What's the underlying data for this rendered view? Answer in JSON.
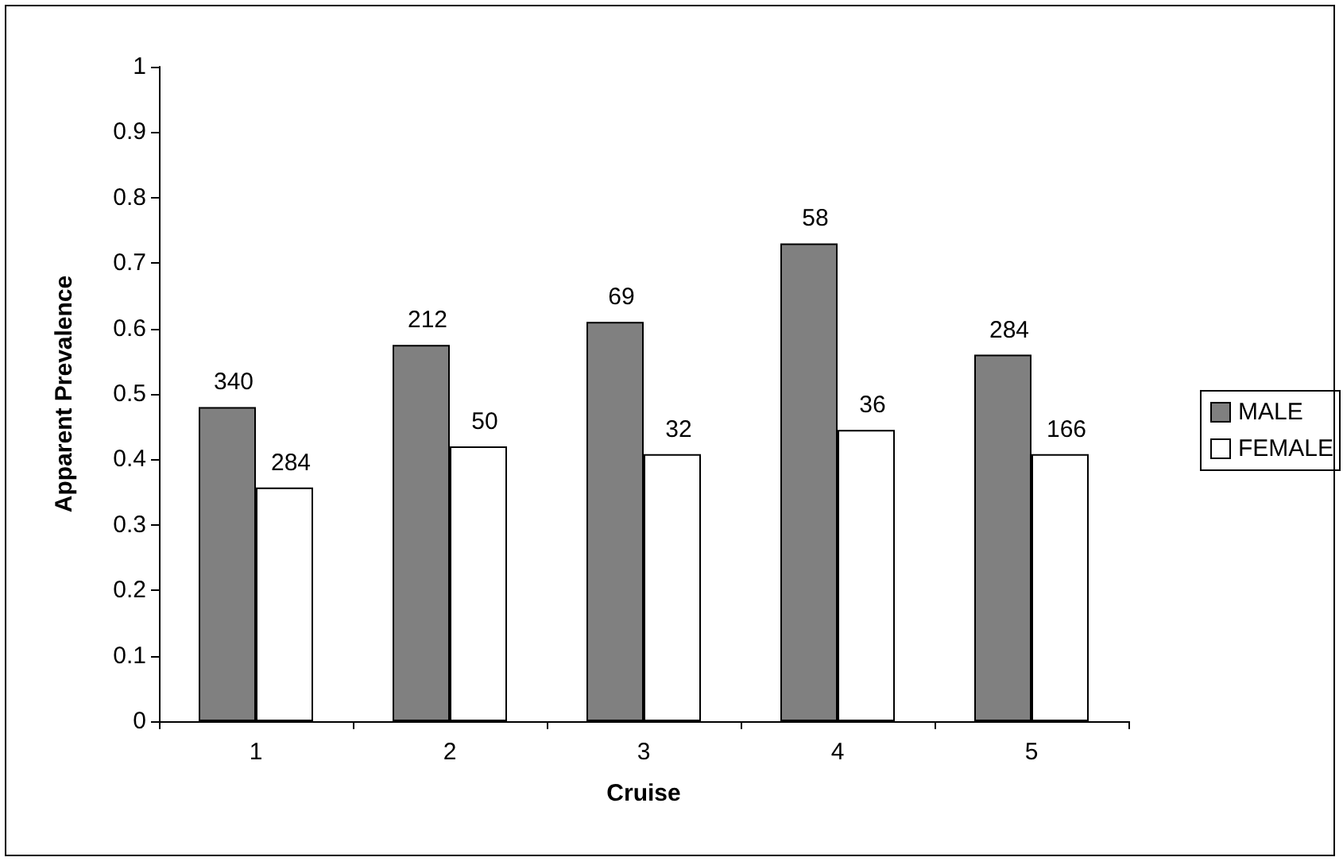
{
  "chart_data": {
    "type": "bar",
    "xlabel": "Cruise",
    "ylabel": "Apparent Prevalence",
    "categories": [
      "1",
      "2",
      "3",
      "4",
      "5"
    ],
    "series": [
      {
        "name": "MALE",
        "color": "#808080",
        "values": [
          0.48,
          0.575,
          0.61,
          0.73,
          0.56
        ]
      },
      {
        "name": "FEMALE",
        "color": "#ffffff",
        "values": [
          0.357,
          0.42,
          0.408,
          0.445,
          0.408
        ]
      }
    ],
    "annotations": [
      {
        "text": "340",
        "x": "1",
        "y": 0.48
      },
      {
        "text": "212",
        "x": "2",
        "y": 0.575
      },
      {
        "text": "69",
        "x": "3",
        "y": 0.61
      },
      {
        "text": "58",
        "x": "4",
        "y": 0.73
      },
      {
        "text": "284",
        "x": "5",
        "y": 0.56
      },
      {
        "text": "284",
        "x": "1",
        "y": 0.357
      },
      {
        "text": "50",
        "x": "2",
        "y": 0.42
      },
      {
        "text": "32",
        "x": "3",
        "y": 0.408
      },
      {
        "text": "36",
        "x": "4",
        "y": 0.445
      },
      {
        "text": "166",
        "x": "5",
        "y": 0.408
      }
    ],
    "ylim": [
      0,
      1
    ],
    "yticks": [
      0,
      0.1,
      0.2,
      0.3,
      0.4,
      0.5,
      0.6,
      0.7,
      0.8,
      0.9,
      1
    ],
    "legend": "right",
    "grid": false
  }
}
